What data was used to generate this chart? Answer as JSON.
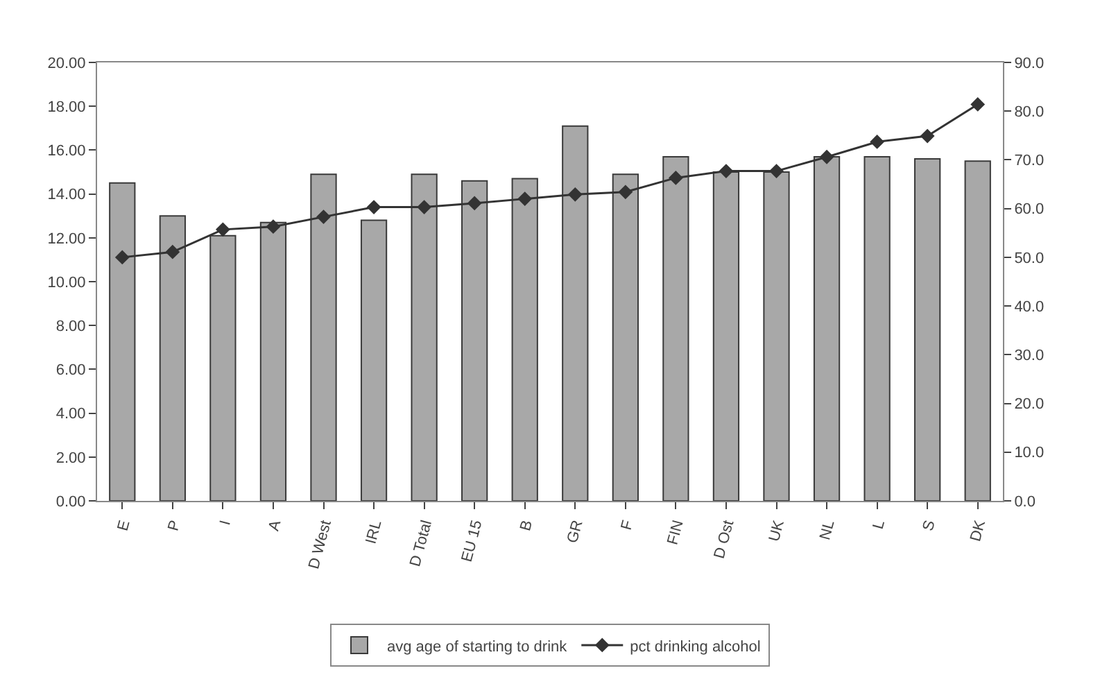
{
  "chart_data": {
    "type": "bar",
    "categories": [
      "E",
      "P",
      "I",
      "A",
      "D West",
      "IRL",
      "D Total",
      "EU 15",
      "B",
      "GR",
      "F",
      "FIN",
      "D Ost",
      "UK",
      "NL",
      "L",
      "S",
      "DK"
    ],
    "series": [
      {
        "name": "avg age of starting to drink",
        "color": "#a8a8a8",
        "values": [
          14.5,
          13.0,
          12.1,
          12.7,
          14.9,
          12.8,
          14.9,
          14.6,
          14.7,
          17.1,
          14.9,
          15.7,
          15.0,
          15.0,
          15.7,
          15.7,
          15.6,
          15.5
        ]
      },
      {
        "name": "pct drinking alcohol",
        "type": "line",
        "axis": "y2",
        "color": "#333333",
        "marker": "diamond",
        "values": [
          50.0,
          51.1,
          55.7,
          56.3,
          58.3,
          60.3,
          60.3,
          61.1,
          62.0,
          62.9,
          63.4,
          66.3,
          67.7,
          67.7,
          70.6,
          73.7,
          74.9,
          81.4
        ]
      }
    ],
    "ylim": [
      0,
      20
    ],
    "yticks": [
      {
        "value": 0,
        "label": "0.00"
      },
      {
        "value": 2,
        "label": "2.00"
      },
      {
        "value": 4,
        "label": "4.00"
      },
      {
        "value": 6,
        "label": "6.00"
      },
      {
        "value": 8,
        "label": "8.00"
      },
      {
        "value": 10,
        "label": "10.00"
      },
      {
        "value": 12,
        "label": "12.00"
      },
      {
        "value": 14,
        "label": "14.00"
      },
      {
        "value": 16,
        "label": "16.00"
      },
      {
        "value": 18,
        "label": "18.00"
      },
      {
        "value": 20,
        "label": "20.00"
      }
    ],
    "y2lim": [
      0,
      90
    ],
    "y2ticks": [
      {
        "value": 0,
        "label": "0.0"
      },
      {
        "value": 10,
        "label": "10.0"
      },
      {
        "value": 20,
        "label": "20.0"
      },
      {
        "value": 30,
        "label": "30.0"
      },
      {
        "value": 40,
        "label": "40.0"
      },
      {
        "value": 50,
        "label": "50.0"
      },
      {
        "value": 60,
        "label": "60.0"
      },
      {
        "value": 70,
        "label": "70.0"
      },
      {
        "value": 80,
        "label": "80.0"
      },
      {
        "value": 90,
        "label": "90.0"
      }
    ],
    "legend": "bottom"
  }
}
